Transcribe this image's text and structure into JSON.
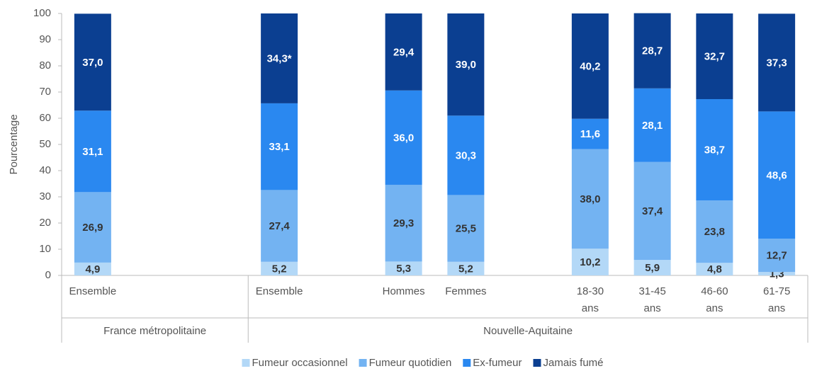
{
  "chart_data": {
    "type": "stacked_bar",
    "y_label": "Pourcentage",
    "categories": [
      "Ensemble",
      null,
      null,
      "Ensemble",
      null,
      "Hommes",
      "Femmes",
      null,
      "18-30 ans",
      "31-45 ans",
      "46-60 ans",
      "61-75 ans"
    ],
    "groups": [
      {
        "name": "France métropolitaine",
        "size": 3
      },
      {
        "name": "Nouvelle-Aquitaine",
        "size": 9
      }
    ],
    "series": [
      {
        "name": "Fumeur occasionnel",
        "color": "#b3d8f7",
        "label_color": "#333333",
        "values": [
          4.9,
          null,
          null,
          5.2,
          null,
          5.3,
          5.2,
          null,
          10.2,
          5.9,
          4.8,
          1.3
        ],
        "value_labels": [
          "4,9",
          null,
          null,
          "5,2",
          null,
          "5,3",
          "5,2",
          null,
          "10,2",
          "5,9",
          "4,8",
          "1,3"
        ]
      },
      {
        "name": "Fumeur quotidien",
        "color": "#73b3f2",
        "label_color": "#333333",
        "values": [
          26.9,
          null,
          null,
          27.4,
          null,
          29.3,
          25.5,
          null,
          38.0,
          37.4,
          23.8,
          12.7
        ],
        "value_labels": [
          "26,9",
          null,
          null,
          "27,4",
          null,
          "29,3",
          "25,5",
          null,
          "38,0",
          "37,4",
          "23,8",
          "12,7"
        ]
      },
      {
        "name": "Ex-fumeur",
        "color": "#2a88f0",
        "label_color": "#ffffff",
        "values": [
          31.1,
          null,
          null,
          33.1,
          null,
          36.0,
          30.3,
          null,
          11.6,
          28.1,
          38.7,
          48.6
        ],
        "value_labels": [
          "31,1",
          null,
          null,
          "33,1",
          null,
          "36,0",
          "30,3",
          null,
          "11,6",
          "28,1",
          "38,7",
          "48,6"
        ]
      },
      {
        "name": "Jamais fumé",
        "color": "#0b3f91",
        "label_color": "#ffffff",
        "values": [
          37.0,
          null,
          null,
          34.3,
          null,
          29.4,
          39.0,
          null,
          40.2,
          28.7,
          32.7,
          37.3
        ],
        "value_labels": [
          "37,0",
          null,
          null,
          "34,3*",
          null,
          "29,4",
          "39,0",
          null,
          "40,2",
          "28,7",
          "32,7",
          "37,3"
        ]
      }
    ],
    "ylim": [
      0,
      100
    ],
    "yticks": [
      0,
      10,
      20,
      30,
      40,
      50,
      60,
      70,
      80,
      90,
      100
    ]
  }
}
